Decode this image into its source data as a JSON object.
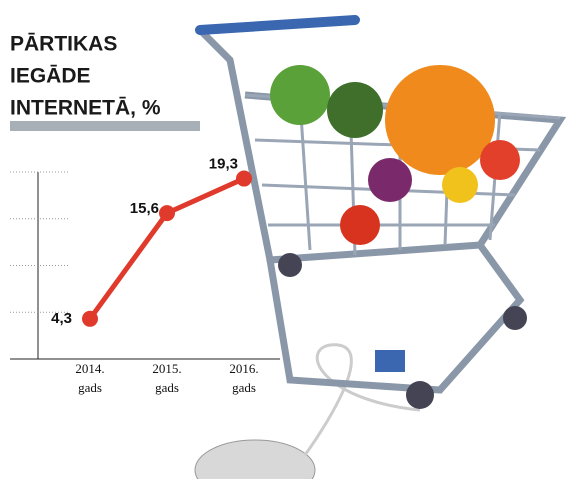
{
  "chart_data": {
    "type": "line",
    "title": [
      "PĀRTIKAS",
      "IEGĀDE",
      "INTERNETĀ, %"
    ],
    "categories": [
      "2014. gads",
      "2015. gads",
      "2016. gads"
    ],
    "values": [
      4.3,
      15.6,
      19.3
    ],
    "value_labels": [
      "4,3",
      "15,6",
      "19,3"
    ],
    "color": "#e03a2c",
    "ylim": [
      0,
      20
    ],
    "yticks": [
      0,
      5,
      10,
      15,
      20
    ],
    "grid": true
  }
}
